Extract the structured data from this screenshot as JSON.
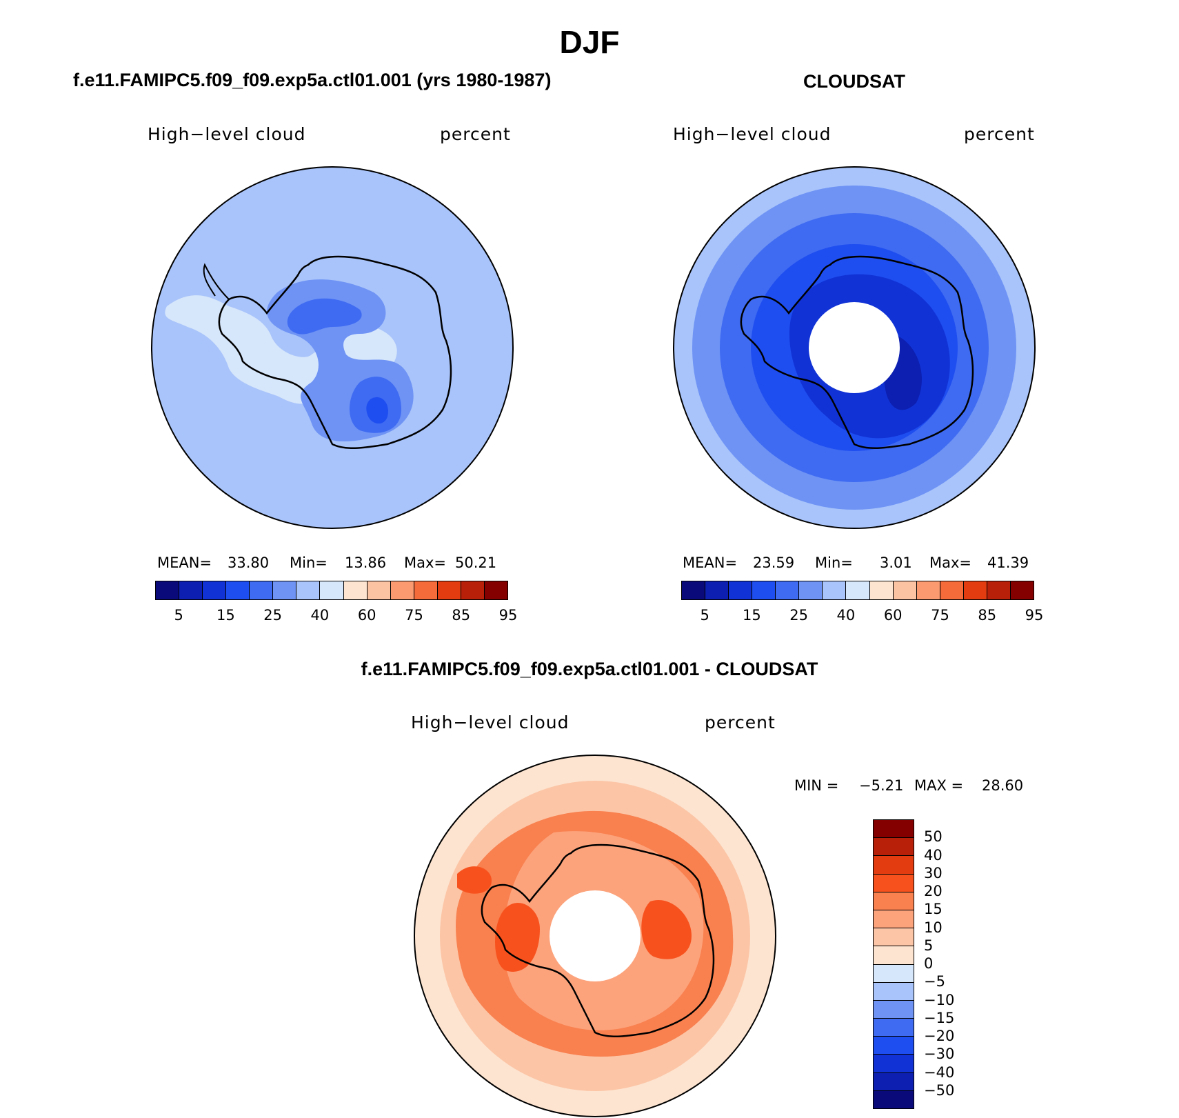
{
  "title": "DJF",
  "chart_data": [
    {
      "type": "heatmap",
      "projection": "south-polar-stereographic",
      "panel_title": "f.e11.FAMIPC5.f09_f09.exp5a.ctl01.001 (yrs 1980-1987)",
      "variable_label": "High−level cloud",
      "units_label": "percent",
      "stats": {
        "mean_label": "MEAN=",
        "mean": "33.80",
        "min_label": "Min=",
        "min": "13.86",
        "max_label": "Max=",
        "max": "50.21"
      },
      "colorbar": {
        "levels": [
          5,
          10,
          15,
          20,
          25,
          30,
          40,
          50,
          60,
          70,
          75,
          80,
          85,
          90,
          95
        ],
        "tick_labels": [
          "5",
          "15",
          "25",
          "40",
          "60",
          "75",
          "85",
          "95"
        ],
        "colors": [
          "#0a0a7a",
          "#0c1fb0",
          "#1133d6",
          "#1f4ef0",
          "#3f6bf2",
          "#6e93f5",
          "#a9c4fa",
          "#d6e6fb",
          "#fde4d0",
          "#fcc3a2",
          "#fb9a70",
          "#f56b3a",
          "#e23c10",
          "#b8200a",
          "#840000"
        ]
      }
    },
    {
      "type": "heatmap",
      "projection": "south-polar-stereographic",
      "panel_title": "CLOUDSAT",
      "variable_label": "High−level cloud",
      "units_label": "percent",
      "stats": {
        "mean_label": "MEAN=",
        "mean": "23.59",
        "min_label": "Min=",
        "min": "3.01",
        "max_label": "Max=",
        "max": "41.39"
      },
      "colorbar": {
        "levels": [
          5,
          10,
          15,
          20,
          25,
          30,
          40,
          50,
          60,
          70,
          75,
          80,
          85,
          90,
          95
        ],
        "tick_labels": [
          "5",
          "15",
          "25",
          "40",
          "60",
          "75",
          "85",
          "95"
        ],
        "colors": [
          "#0a0a7a",
          "#0c1fb0",
          "#1133d6",
          "#1f4ef0",
          "#3f6bf2",
          "#6e93f5",
          "#a9c4fa",
          "#d6e6fb",
          "#fde4d0",
          "#fcc3a2",
          "#fb9a70",
          "#f56b3a",
          "#e23c10",
          "#b8200a",
          "#840000"
        ]
      }
    },
    {
      "type": "heatmap",
      "projection": "south-polar-stereographic",
      "panel_title": "f.e11.FAMIPC5.f09_f09.exp5a.ctl01.001 - CLOUDSAT",
      "variable_label": "High−level cloud",
      "units_label": "percent",
      "stats": {
        "min_label": "MIN =",
        "min": "−5.21",
        "max_label": "MAX =",
        "max": "28.60"
      },
      "colorbar": {
        "orientation": "vertical",
        "tick_labels": [
          "50",
          "40",
          "30",
          "20",
          "15",
          "10",
          "5",
          "0",
          "−5",
          "−10",
          "−15",
          "−20",
          "−30",
          "−40",
          "−50"
        ],
        "colors": [
          "#840000",
          "#b8200a",
          "#e23c10",
          "#f7521e",
          "#f9804f",
          "#fca37c",
          "#fcc5a6",
          "#fde4d0",
          "#d6e6fb",
          "#a9c4fa",
          "#6e93f5",
          "#3f6bf2",
          "#1f4ef0",
          "#1133d6",
          "#0c1fb0",
          "#0a0a7a"
        ]
      }
    }
  ]
}
